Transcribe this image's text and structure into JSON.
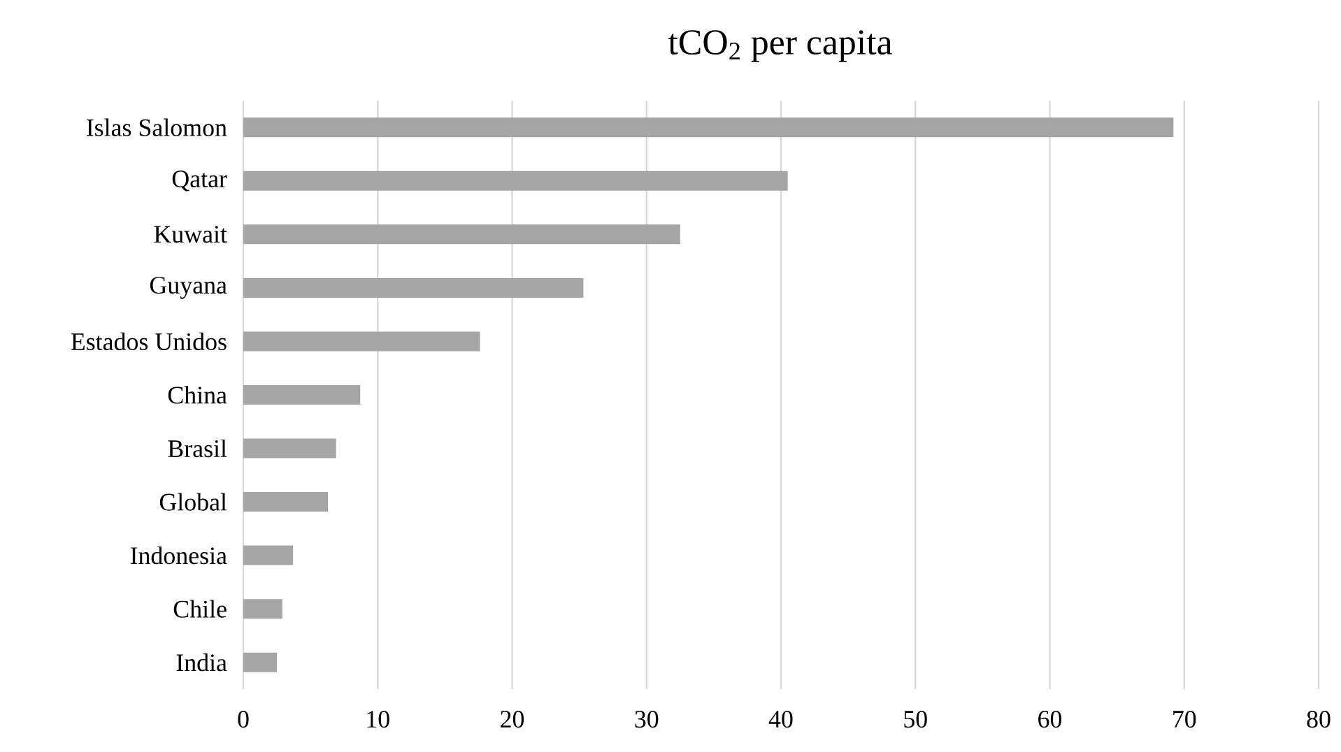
{
  "chart_data": {
    "type": "bar",
    "orientation": "horizontal",
    "title": "tCO$_{2}$ per capita",
    "categories": [
      "Islas Salomon",
      "Qatar",
      "Kuwait",
      "Guyana",
      "Estados Unidos",
      "China",
      "Brasil",
      "Global",
      "Indonesia",
      "Chile",
      "India"
    ],
    "values": [
      69.2,
      40.5,
      32.5,
      25.3,
      17.6,
      8.7,
      6.9,
      6.3,
      3.7,
      2.9,
      2.5
    ],
    "color": "#a5a5a5",
    "xlim": [
      0,
      80
    ],
    "xticks": [
      0,
      10,
      20,
      30,
      40,
      50,
      60,
      70,
      80
    ],
    "grid": "x"
  }
}
